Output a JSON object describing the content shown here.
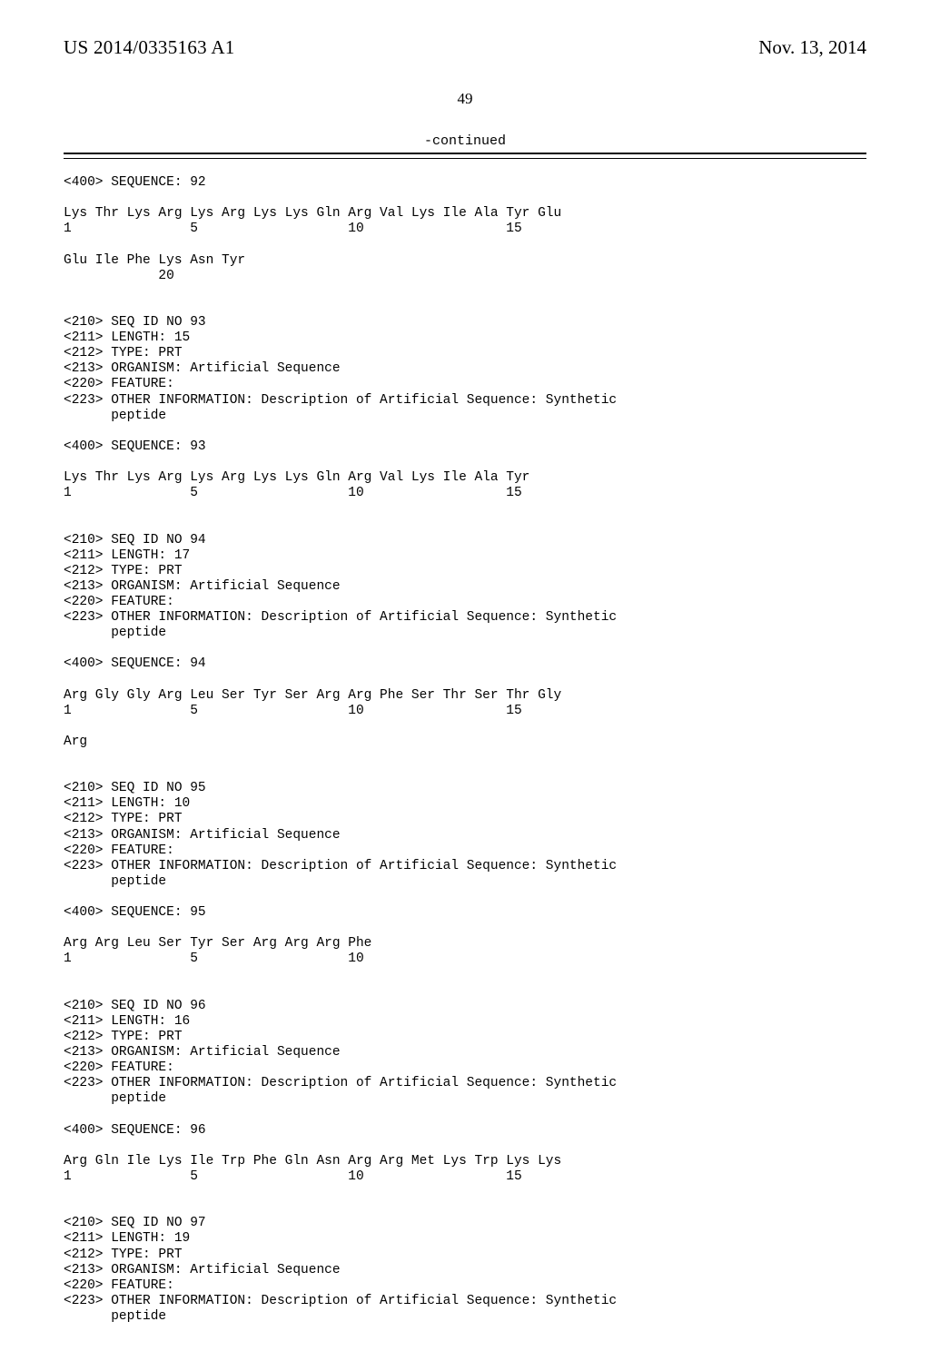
{
  "header": {
    "publication_number": "US 2014/0335163 A1",
    "publication_date": "Nov. 13, 2014"
  },
  "page_number": "49",
  "continued_label": "-continued",
  "entries": [
    {
      "type": "line",
      "text": "<400> SEQUENCE: 92"
    },
    {
      "type": "blank"
    },
    {
      "type": "line",
      "text": "Lys Thr Lys Arg Lys Arg Lys Lys Gln Arg Val Lys Ile Ala Tyr Glu"
    },
    {
      "type": "line",
      "text": "1               5                   10                  15"
    },
    {
      "type": "blank"
    },
    {
      "type": "line",
      "text": "Glu Ile Phe Lys Asn Tyr"
    },
    {
      "type": "line",
      "text": "            20"
    },
    {
      "type": "blank"
    },
    {
      "type": "blank"
    },
    {
      "type": "line",
      "text": "<210> SEQ ID NO 93"
    },
    {
      "type": "line",
      "text": "<211> LENGTH: 15"
    },
    {
      "type": "line",
      "text": "<212> TYPE: PRT"
    },
    {
      "type": "line",
      "text": "<213> ORGANISM: Artificial Sequence"
    },
    {
      "type": "line",
      "text": "<220> FEATURE:"
    },
    {
      "type": "line",
      "text": "<223> OTHER INFORMATION: Description of Artificial Sequence: Synthetic"
    },
    {
      "type": "line",
      "text": "      peptide"
    },
    {
      "type": "blank"
    },
    {
      "type": "line",
      "text": "<400> SEQUENCE: 93"
    },
    {
      "type": "blank"
    },
    {
      "type": "line",
      "text": "Lys Thr Lys Arg Lys Arg Lys Lys Gln Arg Val Lys Ile Ala Tyr"
    },
    {
      "type": "line",
      "text": "1               5                   10                  15"
    },
    {
      "type": "blank"
    },
    {
      "type": "blank"
    },
    {
      "type": "line",
      "text": "<210> SEQ ID NO 94"
    },
    {
      "type": "line",
      "text": "<211> LENGTH: 17"
    },
    {
      "type": "line",
      "text": "<212> TYPE: PRT"
    },
    {
      "type": "line",
      "text": "<213> ORGANISM: Artificial Sequence"
    },
    {
      "type": "line",
      "text": "<220> FEATURE:"
    },
    {
      "type": "line",
      "text": "<223> OTHER INFORMATION: Description of Artificial Sequence: Synthetic"
    },
    {
      "type": "line",
      "text": "      peptide"
    },
    {
      "type": "blank"
    },
    {
      "type": "line",
      "text": "<400> SEQUENCE: 94"
    },
    {
      "type": "blank"
    },
    {
      "type": "line",
      "text": "Arg Gly Gly Arg Leu Ser Tyr Ser Arg Arg Phe Ser Thr Ser Thr Gly"
    },
    {
      "type": "line",
      "text": "1               5                   10                  15"
    },
    {
      "type": "blank"
    },
    {
      "type": "line",
      "text": "Arg"
    },
    {
      "type": "blank"
    },
    {
      "type": "blank"
    },
    {
      "type": "line",
      "text": "<210> SEQ ID NO 95"
    },
    {
      "type": "line",
      "text": "<211> LENGTH: 10"
    },
    {
      "type": "line",
      "text": "<212> TYPE: PRT"
    },
    {
      "type": "line",
      "text": "<213> ORGANISM: Artificial Sequence"
    },
    {
      "type": "line",
      "text": "<220> FEATURE:"
    },
    {
      "type": "line",
      "text": "<223> OTHER INFORMATION: Description of Artificial Sequence: Synthetic"
    },
    {
      "type": "line",
      "text": "      peptide"
    },
    {
      "type": "blank"
    },
    {
      "type": "line",
      "text": "<400> SEQUENCE: 95"
    },
    {
      "type": "blank"
    },
    {
      "type": "line",
      "text": "Arg Arg Leu Ser Tyr Ser Arg Arg Arg Phe"
    },
    {
      "type": "line",
      "text": "1               5                   10"
    },
    {
      "type": "blank"
    },
    {
      "type": "blank"
    },
    {
      "type": "line",
      "text": "<210> SEQ ID NO 96"
    },
    {
      "type": "line",
      "text": "<211> LENGTH: 16"
    },
    {
      "type": "line",
      "text": "<212> TYPE: PRT"
    },
    {
      "type": "line",
      "text": "<213> ORGANISM: Artificial Sequence"
    },
    {
      "type": "line",
      "text": "<220> FEATURE:"
    },
    {
      "type": "line",
      "text": "<223> OTHER INFORMATION: Description of Artificial Sequence: Synthetic"
    },
    {
      "type": "line",
      "text": "      peptide"
    },
    {
      "type": "blank"
    },
    {
      "type": "line",
      "text": "<400> SEQUENCE: 96"
    },
    {
      "type": "blank"
    },
    {
      "type": "line",
      "text": "Arg Gln Ile Lys Ile Trp Phe Gln Asn Arg Arg Met Lys Trp Lys Lys"
    },
    {
      "type": "line",
      "text": "1               5                   10                  15"
    },
    {
      "type": "blank"
    },
    {
      "type": "blank"
    },
    {
      "type": "line",
      "text": "<210> SEQ ID NO 97"
    },
    {
      "type": "line",
      "text": "<211> LENGTH: 19"
    },
    {
      "type": "line",
      "text": "<212> TYPE: PRT"
    },
    {
      "type": "line",
      "text": "<213> ORGANISM: Artificial Sequence"
    },
    {
      "type": "line",
      "text": "<220> FEATURE:"
    },
    {
      "type": "line",
      "text": "<223> OTHER INFORMATION: Description of Artificial Sequence: Synthetic"
    },
    {
      "type": "line",
      "text": "      peptide"
    }
  ]
}
